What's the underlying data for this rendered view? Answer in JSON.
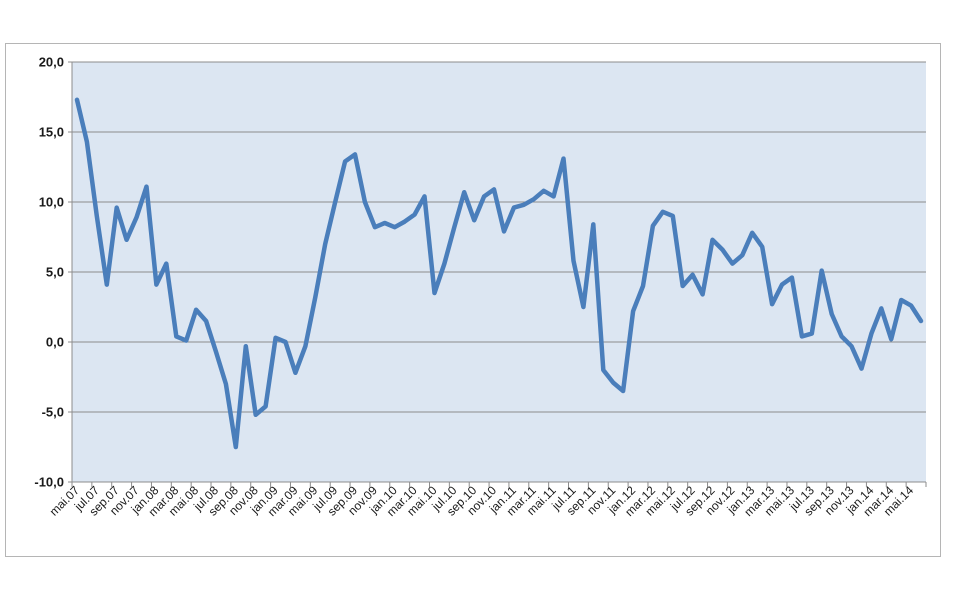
{
  "chart_data": {
    "type": "line",
    "title": "",
    "xlabel": "",
    "ylabel": "",
    "ylim": [
      -10,
      20
    ],
    "ytick_step": 5,
    "ytick_labels": [
      "20,0",
      "15,0",
      "10,0",
      "5,0",
      "0,0",
      "-5,0",
      "-10,0"
    ],
    "grid": "horizontal",
    "legend": "none",
    "colors": {
      "line": "#4a7ebb",
      "plot_bg": "#dce6f2",
      "grid": "#8c8c8c"
    },
    "x_labels": [
      "mai.07",
      "jul.07",
      "sep.07",
      "nov.07",
      "jan.08",
      "mar.08",
      "mai.08",
      "jul.08",
      "sep.08",
      "nov.08",
      "jan.09",
      "mar.09",
      "mai.09",
      "jul.09",
      "sep.09",
      "nov.09",
      "jan.10",
      "mar.10",
      "mai.10",
      "jul.10",
      "sep.10",
      "nov.10",
      "jan.11",
      "mar.11",
      "mai.11",
      "jul.11",
      "sep.11",
      "nov.11",
      "jan.12",
      "mar.12",
      "mai.12",
      "jul.12",
      "sep.12",
      "nov.12",
      "jan.13",
      "mar.13",
      "mai.13",
      "jul.13",
      "sep.13",
      "nov.13",
      "jan.14",
      "mar.14",
      "mai.14"
    ],
    "series": [
      {
        "values": [
          17.3,
          14.3,
          9.0,
          4.1,
          9.6,
          7.3,
          8.9,
          11.1,
          4.1,
          5.6,
          0.4,
          0.1,
          2.3,
          1.5,
          -0.7,
          -3.0,
          -7.5,
          -0.3,
          -5.2,
          -4.6,
          0.3,
          0.0,
          -2.2,
          -0.3,
          3.2,
          7.0,
          10.0,
          12.9,
          13.4,
          10.0,
          8.2,
          8.5,
          8.2,
          8.6,
          9.1,
          10.4,
          3.5,
          5.6,
          8.2,
          10.7,
          8.7,
          10.4,
          10.9,
          7.9,
          9.6,
          9.8,
          10.2,
          10.8,
          10.4,
          13.1,
          5.8,
          2.5,
          8.4,
          -2.0,
          -2.9,
          -3.5,
          2.2,
          4.0,
          8.3,
          9.3,
          9.0,
          4.0,
          4.8,
          3.4,
          7.3,
          6.6,
          5.6,
          6.2,
          7.8,
          6.8,
          2.7,
          4.1,
          4.6,
          0.4,
          0.6,
          5.1,
          2.0,
          0.4,
          -0.3,
          -1.9,
          0.6,
          2.4,
          0.2,
          3.0,
          2.6,
          1.5
        ]
      }
    ]
  }
}
